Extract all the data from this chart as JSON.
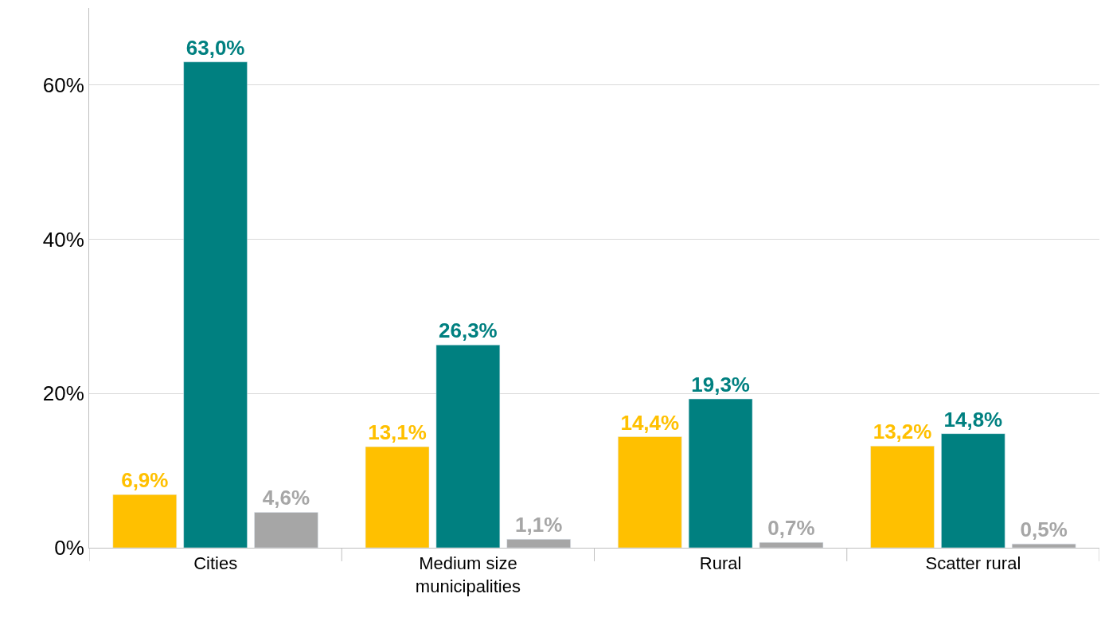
{
  "chart_data": {
    "type": "bar",
    "categories": [
      "Cities",
      "Medium size municipalities",
      "Rural",
      "Scatter rural"
    ],
    "series": [
      {
        "color": "#ffc000",
        "values": [
          6.9,
          13.1,
          14.4,
          13.2
        ],
        "value_labels": [
          "6,9%",
          "13,1%",
          "14,4%",
          "13,2%"
        ]
      },
      {
        "color": "#008080",
        "values": [
          63.0,
          26.3,
          19.3,
          14.8
        ],
        "value_labels": [
          "63,0%",
          "26,3%",
          "19,3%",
          "14,8%"
        ]
      },
      {
        "color": "#a6a6a6",
        "values": [
          4.6,
          1.1,
          0.7,
          0.5
        ],
        "value_labels": [
          "4,6%",
          "1,1%",
          "0,7%",
          "0,5%"
        ]
      }
    ],
    "ylim": [
      0,
      70
    ],
    "yticks": [
      {
        "value": 0,
        "label": "0%"
      },
      {
        "value": 20,
        "label": "20%"
      },
      {
        "value": 40,
        "label": "40%"
      },
      {
        "value": 60,
        "label": "60%"
      }
    ],
    "grid": "y",
    "legend": false
  }
}
